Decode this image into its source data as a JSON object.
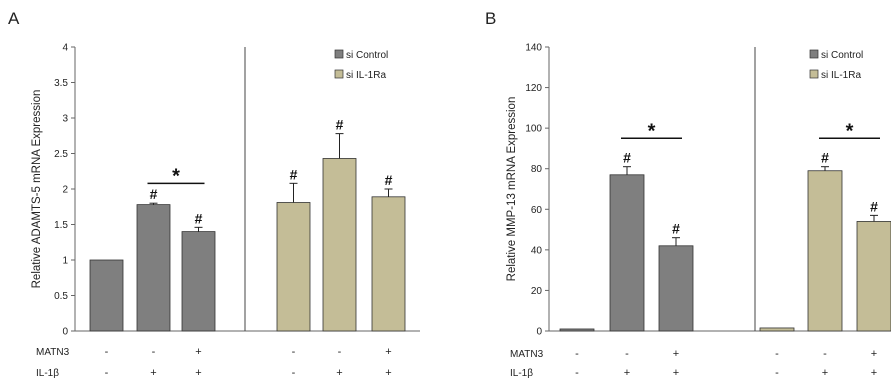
{
  "chart_data": [
    {
      "type": "bar",
      "panel_label": "A",
      "ylabel": "Relative ADAMTS-5 mRNA Expression",
      "ylim": [
        0,
        4
      ],
      "yticks": [
        0,
        0.5,
        1,
        1.5,
        2,
        2.5,
        3,
        3.5,
        4
      ],
      "ytick_labels": [
        "0",
        "0.5",
        "1",
        "1.5",
        "2",
        "2.5",
        "3",
        "3.5",
        "4"
      ],
      "legend_position": "top-right",
      "legend": [
        {
          "name": "si Control",
          "color": "#7f7f7f"
        },
        {
          "name": "si IL-1Ra",
          "color": "#c4bd97"
        }
      ],
      "bars": [
        {
          "group": 0,
          "value": 1.0,
          "error": 0.0,
          "annotation": ""
        },
        {
          "group": 0,
          "value": 1.78,
          "error": 0.02,
          "annotation": "#"
        },
        {
          "group": 0,
          "value": 1.4,
          "error": 0.06,
          "annotation": "#"
        },
        {
          "group": 1,
          "value": 1.81,
          "error": 0.27,
          "annotation": "#"
        },
        {
          "group": 1,
          "value": 2.43,
          "error": 0.35,
          "annotation": "#"
        },
        {
          "group": 1,
          "value": 1.89,
          "error": 0.11,
          "annotation": "#"
        }
      ],
      "significance": [
        {
          "from_bar": 1,
          "to_bar": 2,
          "y": 2.08,
          "label": "*"
        }
      ],
      "conditions": [
        {
          "name": "MATN3",
          "values": [
            "-",
            "-",
            "+",
            "-",
            "-",
            "+"
          ]
        },
        {
          "name": "IL-1β",
          "values": [
            "-",
            "+",
            "+",
            "-",
            "+",
            "+"
          ]
        }
      ]
    },
    {
      "type": "bar",
      "panel_label": "B",
      "ylabel": "Relative MMP-13 mRNA Expression",
      "ylim": [
        0,
        140
      ],
      "yticks": [
        0,
        20,
        40,
        60,
        80,
        100,
        120,
        140
      ],
      "ytick_labels": [
        "0",
        "20",
        "40",
        "60",
        "80",
        "100",
        "120",
        "140"
      ],
      "legend_position": "top-right",
      "legend": [
        {
          "name": "si Control",
          "color": "#7f7f7f"
        },
        {
          "name": "si IL-1Ra",
          "color": "#c4bd97"
        }
      ],
      "bars": [
        {
          "group": 0,
          "value": 1.0,
          "error": 0.0,
          "annotation": ""
        },
        {
          "group": 0,
          "value": 77,
          "error": 4,
          "annotation": "#"
        },
        {
          "group": 0,
          "value": 42,
          "error": 4,
          "annotation": "#"
        },
        {
          "group": 1,
          "value": 1.5,
          "error": 0.0,
          "annotation": ""
        },
        {
          "group": 1,
          "value": 79,
          "error": 2,
          "annotation": "#"
        },
        {
          "group": 1,
          "value": 54,
          "error": 3,
          "annotation": "#"
        }
      ],
      "significance": [
        {
          "from_bar": 1,
          "to_bar": 2,
          "y": 95,
          "label": "*"
        },
        {
          "from_bar": 4,
          "to_bar": 5,
          "y": 95,
          "label": "*"
        }
      ],
      "conditions": [
        {
          "name": "MATN3",
          "values": [
            "-",
            "-",
            "+",
            "-",
            "-",
            "+"
          ]
        },
        {
          "name": "IL-1β",
          "values": [
            "-",
            "+",
            "+",
            "-",
            "+",
            "+"
          ]
        }
      ]
    }
  ]
}
